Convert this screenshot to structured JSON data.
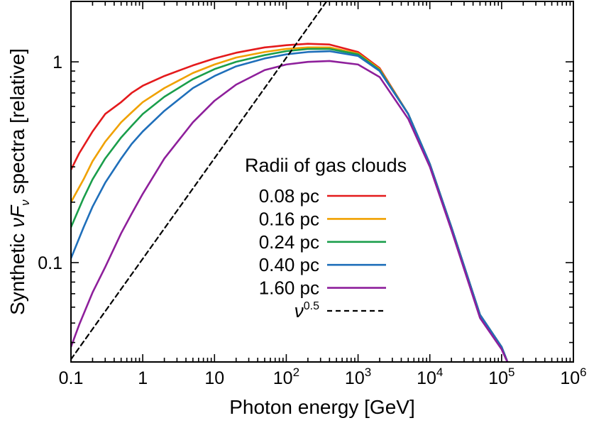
{
  "chart_data": {
    "type": "line",
    "title": "",
    "xlabel": "Photon energy [GeV]",
    "ylabel": {
      "prefix": "Synthetic ",
      "nu": "ν",
      "F": "F",
      "sub": "ν",
      "suffix": " spectra [relative]"
    },
    "xscale": "log",
    "yscale": "log",
    "xlim": [
      0.1,
      1000000
    ],
    "ylim": [
      0.032,
      2.0
    ],
    "x_ticks": [
      {
        "value": 0.1,
        "label": "0.1"
      },
      {
        "value": 1,
        "label": "1"
      },
      {
        "value": 10,
        "label": "10"
      },
      {
        "value": 100,
        "label": "10",
        "sup": "2"
      },
      {
        "value": 1000,
        "label": "10",
        "sup": "3"
      },
      {
        "value": 10000,
        "label": "10",
        "sup": "4"
      },
      {
        "value": 100000,
        "label": "10",
        "sup": "5"
      },
      {
        "value": 1000000,
        "label": "10",
        "sup": "6"
      }
    ],
    "y_ticks": [
      {
        "value": 0.1,
        "label": "0.1"
      },
      {
        "value": 1,
        "label": "1"
      }
    ],
    "grid": false,
    "legend_title": "Radii of gas clouds",
    "legend_position": "center-right",
    "series": [
      {
        "name": "0.08 pc",
        "color": "#e41a1c",
        "style": "solid",
        "x": [
          0.1,
          0.13,
          0.2,
          0.3,
          0.5,
          0.7,
          1,
          2,
          5,
          10,
          20,
          50,
          100,
          200,
          400,
          1000,
          2000,
          5000,
          10000,
          20000,
          50000,
          100000,
          125000
        ],
        "y": [
          0.29,
          0.35,
          0.45,
          0.55,
          0.63,
          0.7,
          0.76,
          0.85,
          0.96,
          1.04,
          1.11,
          1.18,
          1.21,
          1.23,
          1.22,
          1.12,
          0.93,
          0.55,
          0.31,
          0.15,
          0.055,
          0.038,
          0.031
        ]
      },
      {
        "name": "0.16 pc",
        "color": "#f0a100",
        "style": "solid",
        "x": [
          0.1,
          0.15,
          0.2,
          0.3,
          0.5,
          0.7,
          1,
          2,
          5,
          10,
          20,
          50,
          100,
          200,
          400,
          1000,
          2000,
          5000,
          10000,
          20000,
          50000,
          100000,
          125000
        ],
        "y": [
          0.2,
          0.26,
          0.32,
          0.4,
          0.5,
          0.56,
          0.63,
          0.74,
          0.88,
          0.97,
          1.05,
          1.12,
          1.16,
          1.18,
          1.18,
          1.1,
          0.92,
          0.55,
          0.31,
          0.15,
          0.055,
          0.038,
          0.031
        ]
      },
      {
        "name": "0.24 pc",
        "color": "#1a9e4b",
        "style": "solid",
        "x": [
          0.1,
          0.15,
          0.2,
          0.3,
          0.5,
          0.7,
          1,
          2,
          5,
          10,
          20,
          50,
          100,
          200,
          400,
          1000,
          2000,
          5000,
          10000,
          20000,
          50000,
          100000,
          125000
        ],
        "y": [
          0.15,
          0.21,
          0.26,
          0.33,
          0.42,
          0.48,
          0.55,
          0.67,
          0.82,
          0.92,
          1.0,
          1.08,
          1.13,
          1.16,
          1.16,
          1.09,
          0.91,
          0.55,
          0.31,
          0.15,
          0.055,
          0.038,
          0.031
        ]
      },
      {
        "name": "0.40 pc",
        "color": "#1f6fba",
        "style": "solid",
        "x": [
          0.1,
          0.15,
          0.2,
          0.3,
          0.5,
          0.7,
          1,
          2,
          5,
          10,
          20,
          50,
          100,
          200,
          400,
          1000,
          2000,
          5000,
          10000,
          20000,
          50000,
          100000,
          125000
        ],
        "y": [
          0.105,
          0.15,
          0.19,
          0.25,
          0.33,
          0.39,
          0.45,
          0.57,
          0.74,
          0.85,
          0.95,
          1.04,
          1.09,
          1.12,
          1.13,
          1.07,
          0.9,
          0.55,
          0.31,
          0.15,
          0.055,
          0.038,
          0.031
        ]
      },
      {
        "name": "1.60 pc",
        "color": "#8e1f9b",
        "style": "solid",
        "x": [
          0.1,
          0.13,
          0.2,
          0.3,
          0.5,
          0.7,
          1,
          2,
          5,
          10,
          20,
          50,
          100,
          200,
          400,
          1000,
          2000,
          5000,
          10000,
          20000,
          50000,
          100000,
          125000
        ],
        "y": [
          0.038,
          0.049,
          0.071,
          0.095,
          0.14,
          0.175,
          0.22,
          0.33,
          0.5,
          0.64,
          0.77,
          0.91,
          0.97,
          1.0,
          1.01,
          0.97,
          0.84,
          0.52,
          0.3,
          0.145,
          0.053,
          0.037,
          0.031
        ]
      },
      {
        "name": "ν",
        "sup": "0.5",
        "color": "#000000",
        "style": "dashed",
        "x": [
          0.1,
          460
        ],
        "y": [
          0.033,
          2.25
        ]
      }
    ]
  }
}
